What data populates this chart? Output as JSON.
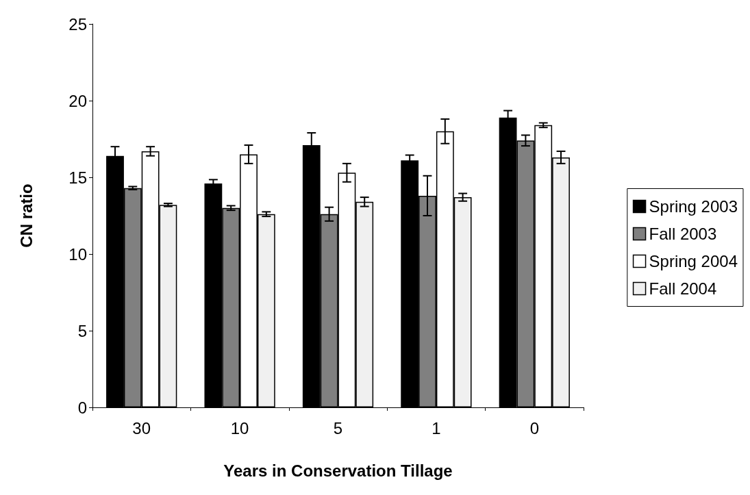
{
  "chart_data": {
    "type": "bar",
    "xlabel": "Years in Conservation Tillage",
    "ylabel": "CN ratio",
    "categories": [
      "30",
      "10",
      "5",
      "1",
      "0"
    ],
    "series": [
      {
        "name": "Spring 2003",
        "color": "#000000",
        "values": [
          16.4,
          14.6,
          17.1,
          16.1,
          18.9
        ],
        "errors": [
          0.6,
          0.25,
          0.8,
          0.35,
          0.45
        ]
      },
      {
        "name": "Fall 2003",
        "color": "#808080",
        "values": [
          14.3,
          13.0,
          12.6,
          13.8,
          17.4
        ],
        "errors": [
          0.1,
          0.15,
          0.45,
          1.3,
          0.35
        ]
      },
      {
        "name": "Spring 2004",
        "color": "#ffffff",
        "values": [
          16.7,
          16.5,
          15.3,
          18.0,
          18.4
        ],
        "errors": [
          0.3,
          0.6,
          0.6,
          0.8,
          0.15
        ]
      },
      {
        "name": "Fall 2004",
        "color": "#f0f0f0",
        "values": [
          13.2,
          12.6,
          13.4,
          13.7,
          16.3
        ],
        "errors": [
          0.1,
          0.15,
          0.3,
          0.25,
          0.4
        ]
      }
    ],
    "ylim": [
      0,
      25
    ],
    "yticks": [
      0,
      5,
      10,
      15,
      20,
      25
    ],
    "grid": false,
    "legend": "right"
  }
}
